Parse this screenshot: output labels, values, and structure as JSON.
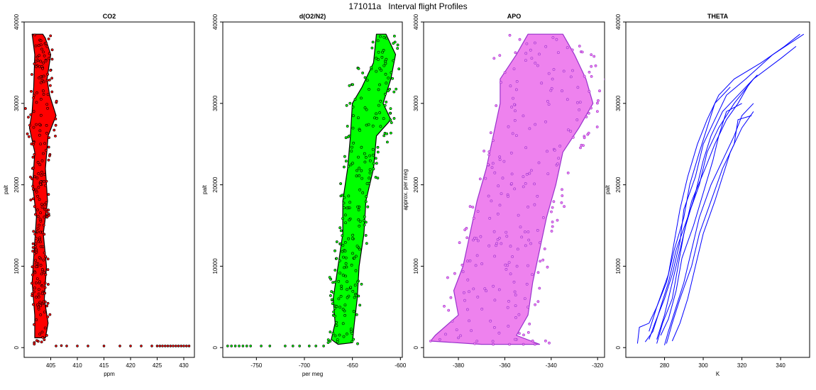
{
  "page": {
    "title": "171011a   Interval flight Profiles"
  },
  "chart_data": [
    {
      "type": "scatter",
      "title": "CO2",
      "xlabel": "ppm",
      "ylabel": "palt",
      "xlim": [
        400,
        432
      ],
      "ylim": [
        -1200,
        40000
      ],
      "xticks": [
        405,
        410,
        415,
        420,
        425,
        430
      ],
      "yticks": [
        0,
        10000,
        20000,
        30000,
        40000
      ],
      "color": "#ff0000",
      "outline": "#000000",
      "series": [
        {
          "profile": [
            [
              402,
              1200
            ],
            [
              404,
              1200
            ],
            [
              404.5,
              3000
            ],
            [
              403.8,
              6000
            ],
            [
              404.2,
              10000
            ],
            [
              403.6,
              14000
            ],
            [
              404.4,
              18000
            ],
            [
              404,
              22000
            ],
            [
              404.5,
              26000
            ],
            [
              406,
              28500
            ],
            [
              404.8,
              31000
            ],
            [
              404.3,
              33000
            ],
            [
              405,
              36000
            ],
            [
              404,
              38000
            ],
            [
              403.5,
              38500
            ],
            [
              401.5,
              38500
            ],
            [
              402,
              36000
            ],
            [
              401.8,
              32000
            ],
            [
              401.5,
              29000
            ],
            [
              401,
              27000
            ],
            [
              402,
              24000
            ],
            [
              401.6,
              20000
            ],
            [
              402.3,
              16000
            ],
            [
              401.9,
              12000
            ],
            [
              401.5,
              8000
            ],
            [
              402,
              4000
            ],
            [
              402,
              1200
            ]
          ],
          "surface": [
            [
              406,
              200
            ],
            [
              407,
              250
            ],
            [
              408,
              200
            ],
            [
              410,
              200
            ],
            [
              412,
              200
            ],
            [
              415,
              200
            ],
            [
              418,
              200
            ],
            [
              420,
              200
            ],
            [
              422,
              200
            ],
            [
              424,
              200
            ],
            [
              425,
              200
            ],
            [
              425.5,
              200
            ],
            [
              426,
              200
            ],
            [
              426.5,
              200
            ],
            [
              427,
              200
            ],
            [
              427.5,
              200
            ],
            [
              428,
              200
            ],
            [
              428.5,
              200
            ],
            [
              429,
              200
            ],
            [
              429.5,
              200
            ],
            [
              430,
              200
            ],
            [
              430.5,
              200
            ],
            [
              431,
              200
            ]
          ]
        }
      ]
    },
    {
      "type": "scatter",
      "title": "d(O2/N2)",
      "xlabel": "per meg",
      "ylabel": "palt",
      "xlim": [
        -785,
        -598
      ],
      "ylim": [
        -1200,
        40000
      ],
      "xticks": [
        -750,
        -700,
        -650,
        -600
      ],
      "yticks": [
        0,
        10000,
        20000,
        30000,
        40000
      ],
      "color": "#00ff00",
      "outline": "#000000",
      "series": [
        {
          "profile": [
            [
              -665,
              400
            ],
            [
              -650,
              600
            ],
            [
              -648,
              3000
            ],
            [
              -645,
              6000
            ],
            [
              -643,
              10000
            ],
            [
              -638,
              14000
            ],
            [
              -636,
              18000
            ],
            [
              -628,
              22000
            ],
            [
              -625,
              26000
            ],
            [
              -610,
              28000
            ],
            [
              -618,
              30000
            ],
            [
              -610,
              33000
            ],
            [
              -605,
              36000
            ],
            [
              -615,
              38500
            ],
            [
              -625,
              38500
            ],
            [
              -628,
              35000
            ],
            [
              -640,
              32000
            ],
            [
              -650,
              30000
            ],
            [
              -652,
              26000
            ],
            [
              -655,
              22000
            ],
            [
              -660,
              18000
            ],
            [
              -660,
              14000
            ],
            [
              -665,
              10000
            ],
            [
              -670,
              6000
            ],
            [
              -668,
              3000
            ],
            [
              -672,
              1000
            ],
            [
              -665,
              400
            ]
          ],
          "surface": [
            [
              -780,
              200
            ],
            [
              -776,
              200
            ],
            [
              -772,
              200
            ],
            [
              -768,
              200
            ],
            [
              -764,
              200
            ],
            [
              -760,
              200
            ],
            [
              -756,
              200
            ],
            [
              -745,
              200
            ],
            [
              -736,
              200
            ],
            [
              -720,
              200
            ],
            [
              -712,
              200
            ],
            [
              -705,
              200
            ],
            [
              -695,
              200
            ],
            [
              -688,
              200
            ],
            [
              -680,
              200
            ]
          ]
        }
      ]
    },
    {
      "type": "scatter",
      "title": "APO",
      "xlabel": "",
      "ylabel": "approx. per meg",
      "xlim": [
        -395,
        -317
      ],
      "ylim": [
        -1200,
        40000
      ],
      "xticks": [
        -380,
        -360,
        -340,
        -320
      ],
      "yticks": [
        0,
        10000,
        20000,
        30000,
        40000
      ],
      "color": "#ee82ee",
      "outline": "#9932cc",
      "series": [
        {
          "profile": [
            [
              -365,
              400
            ],
            [
              -345,
              400
            ],
            [
              -355,
              1500
            ],
            [
              -350,
              4000
            ],
            [
              -348,
              8000
            ],
            [
              -345,
              12000
            ],
            [
              -342,
              16000
            ],
            [
              -338,
              20000
            ],
            [
              -335,
              24000
            ],
            [
              -328,
              27000
            ],
            [
              -322,
              30000
            ],
            [
              -325,
              33000
            ],
            [
              -330,
              36000
            ],
            [
              -335,
              38500
            ],
            [
              -350,
              38500
            ],
            [
              -355,
              36000
            ],
            [
              -362,
              33000
            ],
            [
              -362,
              30000
            ],
            [
              -365,
              26000
            ],
            [
              -368,
              22000
            ],
            [
              -372,
              18000
            ],
            [
              -375,
              14000
            ],
            [
              -378,
              10000
            ],
            [
              -382,
              7000
            ],
            [
              -380,
              4000
            ],
            [
              -390,
              1500
            ],
            [
              -392,
              800
            ],
            [
              -370,
              400
            ]
          ],
          "surface": [
            [
              -392,
              800
            ],
            [
              -388,
              1000
            ],
            [
              -380,
              1200
            ],
            [
              -372,
              800
            ],
            [
              -365,
              400
            ],
            [
              -358,
              400
            ],
            [
              -352,
              400
            ],
            [
              -347,
              400
            ]
          ]
        }
      ]
    },
    {
      "type": "line",
      "title": "THETA",
      "xlabel": "K",
      "ylabel": "palt",
      "xlim": [
        260,
        355
      ],
      "ylim": [
        -1200,
        40000
      ],
      "xticks": [
        280,
        300,
        320,
        340
      ],
      "yticks": [
        0,
        10000,
        20000,
        30000,
        40000
      ],
      "color": "#0000ff",
      "series": [
        {
          "points": [
            [
              266,
              500
            ],
            [
              267,
              2500
            ],
            [
              272,
              3000
            ],
            [
              276,
              5000
            ],
            [
              282,
              9000
            ],
            [
              285,
              13000
            ],
            [
              288,
              17000
            ],
            [
              292,
              21000
            ],
            [
              297,
              25000
            ],
            [
              302,
              28000
            ],
            [
              308,
              31000
            ],
            [
              316,
              33000
            ],
            [
              330,
              35000
            ],
            [
              342,
              37000
            ],
            [
              350,
              38500
            ]
          ]
        },
        {
          "points": [
            [
              272,
              1000
            ],
            [
              275,
              3000
            ],
            [
              280,
              6000
            ],
            [
              284,
              9000
            ],
            [
              288,
              13000
            ],
            [
              290,
              17000
            ],
            [
              296,
              21000
            ],
            [
              300,
              25000
            ],
            [
              306,
              28000
            ],
            [
              312,
              31000
            ],
            [
              322,
              33000
            ],
            [
              336,
              36000
            ],
            [
              352,
              38500
            ]
          ]
        },
        {
          "points": [
            [
              270,
              700
            ],
            [
              274,
              2000
            ],
            [
              278,
              5000
            ],
            [
              282,
              8000
            ],
            [
              286,
              12000
            ],
            [
              292,
              16000
            ],
            [
              298,
              20000
            ],
            [
              302,
              24000
            ],
            [
              308,
              27000
            ],
            [
              316,
              30000
            ],
            [
              326,
              33000
            ],
            [
              340,
              35500
            ],
            [
              348,
              37000
            ]
          ]
        },
        {
          "points": [
            [
              276,
              500
            ],
            [
              279,
              3000
            ],
            [
              284,
              6000
            ],
            [
              287,
              10000
            ],
            [
              290,
              14000
            ],
            [
              294,
              18000
            ],
            [
              301,
              22000
            ],
            [
              306,
              25000
            ],
            [
              312,
              28000
            ],
            [
              318,
              30000
            ],
            [
              324,
              32500
            ]
          ]
        },
        {
          "points": [
            [
              280,
              300
            ],
            [
              282,
              2000
            ],
            [
              286,
              5000
            ],
            [
              290,
              8000
            ],
            [
              294,
              12000
            ],
            [
              298,
              16000
            ],
            [
              304,
              20000
            ],
            [
              310,
              23000
            ],
            [
              316,
              26000
            ],
            [
              320,
              28500
            ],
            [
              326,
              30000
            ]
          ]
        },
        {
          "points": [
            [
              281,
              500
            ],
            [
              284,
              3000
            ],
            [
              288,
              6000
            ],
            [
              294,
              10000
            ],
            [
              298,
              14000
            ],
            [
              304,
              18000
            ],
            [
              310,
              22000
            ],
            [
              316,
              25000
            ],
            [
              318,
              28000
            ],
            [
              325,
              28500
            ]
          ]
        },
        {
          "points": [
            [
              284,
              800
            ],
            [
              288,
              3000
            ],
            [
              292,
              6000
            ],
            [
              296,
              10000
            ],
            [
              300,
              14000
            ],
            [
              306,
              18000
            ],
            [
              310,
              21000
            ],
            [
              314,
              24000
            ],
            [
              320,
              27000
            ],
            [
              326,
              29000
            ]
          ]
        },
        {
          "points": [
            [
              276,
              1000
            ],
            [
              280,
              4000
            ],
            [
              283,
              7000
            ],
            [
              287,
              11000
            ],
            [
              291,
              15000
            ],
            [
              296,
              19000
            ],
            [
              300,
              23000
            ],
            [
              304,
              26000
            ],
            [
              310,
              29000
            ],
            [
              318,
              31000
            ],
            [
              328,
              33500
            ]
          ]
        },
        {
          "points": [
            [
              272,
              2000
            ],
            [
              276,
              5000
            ],
            [
              281,
              8000
            ],
            [
              285,
              12000
            ],
            [
              290,
              16000
            ],
            [
              293,
              20000
            ],
            [
              298,
              24000
            ],
            [
              302,
              27000
            ],
            [
              306,
              30000
            ],
            [
              314,
              32000
            ]
          ]
        },
        {
          "points": [
            [
              278,
              1500
            ],
            [
              282,
              3500
            ],
            [
              286,
              7000
            ],
            [
              289,
              11000
            ],
            [
              295,
              15000
            ],
            [
              300,
              19000
            ],
            [
              305,
              23000
            ],
            [
              308,
              26000
            ],
            [
              312,
              29000
            ],
            [
              320,
              30000
            ]
          ]
        }
      ]
    }
  ]
}
